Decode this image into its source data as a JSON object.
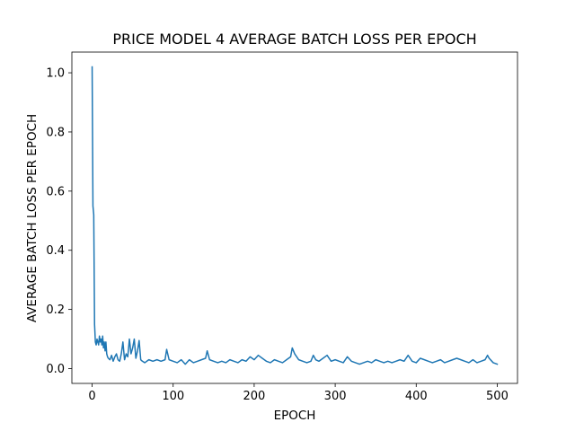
{
  "chart_data": {
    "type": "line",
    "title": "PRICE MODEL 4 AVERAGE BATCH LOSS PER EPOCH",
    "xlabel": "EPOCH",
    "ylabel": "AVERAGE BATCH LOSS PER EPOCH",
    "xlim": [
      -25,
      525
    ],
    "ylim": [
      -0.05,
      1.07
    ],
    "xticks": [
      0,
      100,
      200,
      300,
      400,
      500
    ],
    "yticks": [
      0.0,
      0.2,
      0.4,
      0.6,
      0.8,
      1.0
    ],
    "xtick_labels": [
      "0",
      "100",
      "200",
      "300",
      "400",
      "500"
    ],
    "ytick_labels": [
      "0.0",
      "0.2",
      "0.4",
      "0.6",
      "0.8",
      "1.0"
    ],
    "grid": false,
    "series": [
      {
        "color": "#1f77b4",
        "x": [
          0,
          1,
          2,
          3,
          4,
          5,
          6,
          7,
          8,
          9,
          10,
          11,
          12,
          13,
          14,
          15,
          16,
          17,
          18,
          19,
          20,
          22,
          24,
          26,
          28,
          30,
          32,
          34,
          36,
          38,
          40,
          42,
          44,
          46,
          48,
          50,
          52,
          54,
          56,
          58,
          60,
          62,
          65,
          70,
          75,
          80,
          85,
          90,
          92,
          95,
          100,
          105,
          110,
          115,
          120,
          125,
          130,
          135,
          140,
          142,
          145,
          150,
          155,
          160,
          165,
          170,
          175,
          180,
          185,
          190,
          195,
          200,
          205,
          210,
          215,
          220,
          225,
          230,
          235,
          240,
          245,
          247,
          250,
          255,
          260,
          265,
          270,
          273,
          276,
          280,
          285,
          290,
          295,
          300,
          305,
          310,
          315,
          320,
          325,
          330,
          335,
          340,
          345,
          350,
          355,
          360,
          365,
          370,
          375,
          380,
          385,
          390,
          395,
          400,
          405,
          410,
          415,
          420,
          425,
          430,
          435,
          440,
          445,
          450,
          455,
          460,
          465,
          470,
          475,
          480,
          485,
          488,
          490,
          495,
          500
        ],
        "y": [
          1.02,
          0.55,
          0.52,
          0.15,
          0.09,
          0.08,
          0.1,
          0.09,
          0.08,
          0.11,
          0.09,
          0.1,
          0.08,
          0.11,
          0.07,
          0.09,
          0.06,
          0.09,
          0.05,
          0.04,
          0.035,
          0.03,
          0.045,
          0.025,
          0.04,
          0.05,
          0.03,
          0.025,
          0.05,
          0.09,
          0.03,
          0.05,
          0.04,
          0.1,
          0.05,
          0.07,
          0.1,
          0.035,
          0.06,
          0.095,
          0.03,
          0.025,
          0.02,
          0.03,
          0.025,
          0.03,
          0.025,
          0.03,
          0.065,
          0.03,
          0.025,
          0.02,
          0.03,
          0.015,
          0.03,
          0.02,
          0.025,
          0.03,
          0.035,
          0.06,
          0.03,
          0.025,
          0.02,
          0.025,
          0.02,
          0.03,
          0.025,
          0.02,
          0.03,
          0.025,
          0.04,
          0.03,
          0.045,
          0.035,
          0.025,
          0.02,
          0.03,
          0.025,
          0.02,
          0.03,
          0.04,
          0.07,
          0.05,
          0.03,
          0.025,
          0.02,
          0.025,
          0.045,
          0.03,
          0.025,
          0.035,
          0.045,
          0.025,
          0.03,
          0.025,
          0.02,
          0.04,
          0.025,
          0.02,
          0.015,
          0.02,
          0.025,
          0.02,
          0.03,
          0.025,
          0.02,
          0.025,
          0.02,
          0.025,
          0.03,
          0.025,
          0.045,
          0.025,
          0.02,
          0.035,
          0.03,
          0.025,
          0.02,
          0.025,
          0.03,
          0.02,
          0.025,
          0.03,
          0.035,
          0.03,
          0.025,
          0.02,
          0.03,
          0.02,
          0.025,
          0.03,
          0.045,
          0.035,
          0.02,
          0.015
        ]
      }
    ]
  }
}
